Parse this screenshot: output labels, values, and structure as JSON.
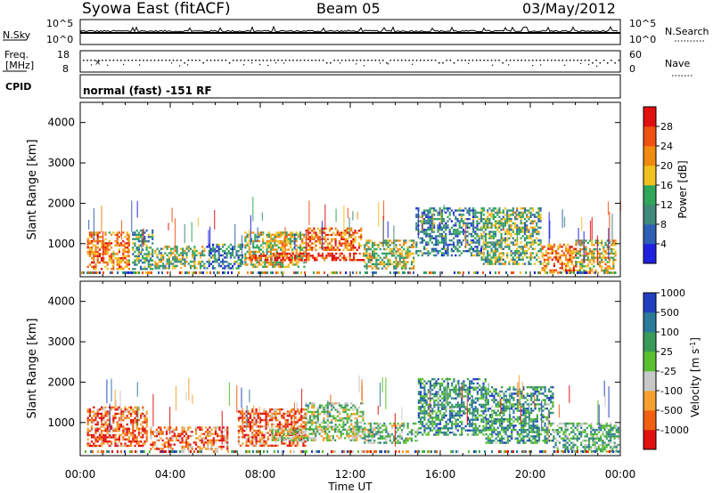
{
  "header": {
    "station": "Syowa East (fitACF)",
    "beam": "Beam 05",
    "date": "03/May/2012"
  },
  "top_panels": {
    "nsky_label": "N.Sky",
    "nsky_ticks": [
      "10^5",
      "10^0"
    ],
    "nsearch_label": "N.Search",
    "nsearch_ticks": [
      "10^5",
      "10^0"
    ],
    "freq_label_1": "Freq.",
    "freq_label_2": "[MHz]",
    "freq_ticks": [
      "18",
      "8"
    ],
    "nave_label": "Nave",
    "nave_ticks": [
      "60",
      "0"
    ],
    "cpid_label": "CPID",
    "cpid_value": "normal (fast) -151 RF"
  },
  "x_axis": {
    "label": "Time UT",
    "ticks": [
      "00:00",
      "04:00",
      "08:00",
      "12:00",
      "16:00",
      "20:00",
      "00:00"
    ]
  },
  "colors": {
    "power_scale": [
      "#2020e0",
      "#2e5fb4",
      "#3f8a7a",
      "#2fa65a",
      "#f0c020",
      "#f08a10",
      "#f05010",
      "#e01010"
    ],
    "velocity_scale": [
      "#e01010",
      "#f06010",
      "#f5a030",
      "#c8c8c8",
      "#58c030",
      "#3a9a5a",
      "#2a7a9a",
      "#2040c0"
    ]
  },
  "chart_data": [
    {
      "type": "heatmap",
      "title": "Beam 05",
      "xlabel": "Time UT",
      "ylabel": "Slant Range [km]",
      "xlim": [
        "00:00",
        "24:00"
      ],
      "ylim": [
        180,
        4500
      ],
      "x_ticks": [
        "00:00",
        "04:00",
        "08:00",
        "12:00",
        "16:00",
        "20:00",
        "00:00"
      ],
      "y_ticks": [
        1000,
        2000,
        3000,
        4000
      ],
      "colorbar": {
        "label": "Power [dB]",
        "range": [
          0,
          32
        ],
        "ticks": [
          4,
          8,
          12,
          16,
          20,
          24,
          28
        ]
      },
      "regions": [
        {
          "t": [
            0.3,
            2.2
          ],
          "range": [
            400,
            1300
          ],
          "level": 0.72
        },
        {
          "t": [
            2.3,
            3.2
          ],
          "range": [
            380,
            1350
          ],
          "level": 0.35
        },
        {
          "t": [
            3.3,
            5.5
          ],
          "range": [
            400,
            950
          ],
          "level": 0.45
        },
        {
          "t": [
            5.6,
            7.2
          ],
          "range": [
            400,
            1000
          ],
          "level": 0.3
        },
        {
          "t": [
            7.3,
            10.0
          ],
          "range": [
            450,
            1300
          ],
          "level": 0.55
        },
        {
          "t": [
            7.5,
            13.0
          ],
          "range": [
            620,
            780
          ],
          "level": 0.88
        },
        {
          "t": [
            10.0,
            12.5
          ],
          "range": [
            850,
            1400
          ],
          "level": 0.75
        },
        {
          "t": [
            12.6,
            14.8
          ],
          "range": [
            400,
            1100
          ],
          "level": 0.5
        },
        {
          "t": [
            14.9,
            17.8
          ],
          "range": [
            700,
            1900
          ],
          "level": 0.3
        },
        {
          "t": [
            17.8,
            20.5
          ],
          "range": [
            500,
            1900
          ],
          "level": 0.42
        },
        {
          "t": [
            20.5,
            22.0
          ],
          "range": [
            300,
            1000
          ],
          "level": 0.72
        },
        {
          "t": [
            22.0,
            23.8
          ],
          "range": [
            300,
            1100
          ],
          "level": 0.55
        }
      ]
    },
    {
      "type": "heatmap",
      "xlabel": "Time UT",
      "ylabel": "Slant Range [km]",
      "xlim": [
        "00:00",
        "24:00"
      ],
      "ylim": [
        180,
        4500
      ],
      "x_ticks": [
        "00:00",
        "04:00",
        "08:00",
        "12:00",
        "16:00",
        "20:00",
        "00:00"
      ],
      "y_ticks": [
        1000,
        2000,
        3000,
        4000
      ],
      "colorbar": {
        "label": "Velocity [m s^-1]",
        "ticks": [
          -1000,
          -500,
          -100,
          -25,
          25,
          100,
          500,
          1000
        ]
      },
      "regions": [
        {
          "t": [
            0.3,
            3.0
          ],
          "range": [
            400,
            1400
          ],
          "level": 0.18
        },
        {
          "t": [
            3.1,
            6.5
          ],
          "range": [
            350,
            900
          ],
          "level": 0.22
        },
        {
          "t": [
            7.0,
            10.0
          ],
          "range": [
            450,
            1350
          ],
          "level": 0.2
        },
        {
          "t": [
            8.5,
            13.0
          ],
          "range": [
            550,
            850
          ],
          "level": 0.48
        },
        {
          "t": [
            10.0,
            12.6
          ],
          "range": [
            850,
            1500
          ],
          "level": 0.55
        },
        {
          "t": [
            12.6,
            15.0
          ],
          "range": [
            500,
            1000
          ],
          "level": 0.58
        },
        {
          "t": [
            15.0,
            18.0
          ],
          "range": [
            700,
            2100
          ],
          "level": 0.72
        },
        {
          "t": [
            18.0,
            21.0
          ],
          "range": [
            500,
            1900
          ],
          "level": 0.72
        },
        {
          "t": [
            21.0,
            23.9
          ],
          "range": [
            300,
            1000
          ],
          "level": 0.62
        }
      ]
    }
  ]
}
